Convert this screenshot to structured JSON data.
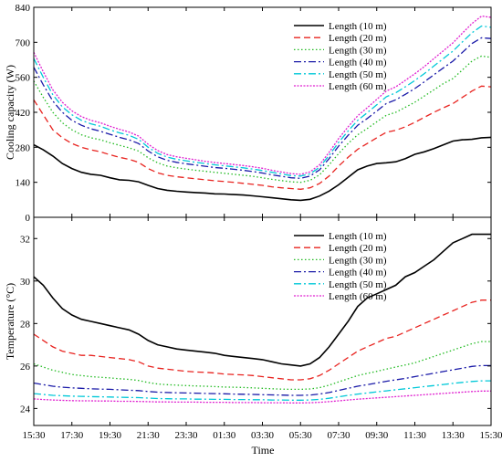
{
  "figure": {
    "x_axis_label": "Time",
    "x_ticks": [
      "15:30",
      "17:30",
      "19:30",
      "21:30",
      "23:30",
      "01:30",
      "03:30",
      "05:30",
      "07:30",
      "09:30",
      "11:30",
      "13:30",
      "15:30"
    ]
  },
  "chart_data": [
    {
      "type": "line",
      "ylabel": "Cooling capacity (W)",
      "xlabel": "",
      "ylim": [
        0,
        840
      ],
      "yticks": [
        0,
        140,
        280,
        420,
        560,
        700,
        840
      ],
      "legend_position": "top-right",
      "x": [
        0,
        0.5,
        1,
        1.5,
        2,
        2.5,
        3,
        3.5,
        4,
        4.5,
        5,
        5.5,
        6,
        6.5,
        7,
        7.5,
        8,
        8.5,
        9,
        9.5,
        10,
        10.5,
        11,
        11.5,
        12,
        12.5,
        13,
        13.5,
        14,
        14.5,
        15,
        15.5,
        16,
        16.5,
        17,
        17.5,
        18,
        18.5,
        19,
        19.5,
        20,
        20.5,
        21,
        21.5,
        22,
        22.5,
        23,
        23.5,
        24
      ],
      "series": [
        {
          "name": "Length (10 m)",
          "color": "#000000",
          "dash": "solid",
          "values": [
            290,
            270,
            245,
            215,
            195,
            180,
            172,
            168,
            158,
            150,
            148,
            142,
            128,
            115,
            108,
            104,
            101,
            99,
            97,
            94,
            93,
            91,
            89,
            86,
            82,
            78,
            74,
            70,
            68,
            72,
            85,
            105,
            130,
            160,
            190,
            205,
            215,
            218,
            222,
            235,
            252,
            262,
            275,
            290,
            305,
            310,
            312,
            318,
            320
          ]
        },
        {
          "name": "Length (20 m)",
          "color": "#e8231f",
          "dash": "dashed",
          "values": [
            470,
            410,
            350,
            318,
            295,
            280,
            270,
            262,
            250,
            240,
            232,
            220,
            195,
            178,
            168,
            162,
            158,
            154,
            150,
            146,
            143,
            140,
            136,
            132,
            128,
            122,
            118,
            115,
            112,
            118,
            135,
            165,
            205,
            240,
            272,
            295,
            318,
            340,
            348,
            362,
            380,
            400,
            420,
            438,
            455,
            480,
            505,
            525,
            522
          ]
        },
        {
          "name": "Length (30 m)",
          "color": "#22bb22",
          "dash": "dotted",
          "values": [
            545,
            480,
            420,
            378,
            350,
            330,
            318,
            310,
            298,
            288,
            278,
            265,
            238,
            218,
            205,
            198,
            193,
            188,
            184,
            180,
            176,
            172,
            168,
            164,
            158,
            152,
            147,
            142,
            140,
            148,
            170,
            210,
            255,
            295,
            330,
            355,
            382,
            408,
            420,
            440,
            460,
            485,
            510,
            535,
            555,
            590,
            625,
            645,
            640
          ]
        },
        {
          "name": "Length (40 m)",
          "color": "#1a1aa8",
          "dash": "dashdot",
          "values": [
            600,
            530,
            465,
            420,
            388,
            368,
            354,
            344,
            332,
            320,
            310,
            295,
            265,
            242,
            228,
            220,
            214,
            209,
            204,
            199,
            196,
            192,
            188,
            183,
            177,
            170,
            164,
            158,
            156,
            165,
            190,
            235,
            285,
            328,
            368,
            395,
            425,
            455,
            470,
            492,
            515,
            542,
            570,
            598,
            625,
            660,
            695,
            718,
            715
          ]
        },
        {
          "name": "Length (50 m)",
          "color": "#00c8d8",
          "dash": "dashdot",
          "values": [
            635,
            560,
            490,
            442,
            410,
            388,
            374,
            364,
            350,
            338,
            328,
            312,
            280,
            256,
            241,
            232,
            226,
            220,
            215,
            210,
            206,
            202,
            198,
            193,
            187,
            180,
            173,
            167,
            165,
            174,
            200,
            248,
            300,
            345,
            388,
            418,
            450,
            482,
            498,
            522,
            547,
            575,
            605,
            635,
            665,
            702,
            738,
            765,
            760
          ]
        },
        {
          "name": "Length (60 m)",
          "color": "#e020d0",
          "dash": "densedot",
          "values": [
            660,
            582,
            510,
            460,
            426,
            403,
            388,
            378,
            364,
            352,
            341,
            325,
            292,
            267,
            251,
            242,
            236,
            230,
            224,
            219,
            215,
            211,
            207,
            202,
            196,
            188,
            181,
            175,
            172,
            182,
            210,
            260,
            315,
            362,
            406,
            438,
            472,
            505,
            522,
            548,
            574,
            603,
            635,
            666,
            698,
            737,
            775,
            805,
            800
          ]
        }
      ]
    },
    {
      "type": "line",
      "ylabel": "Temperature (°C)",
      "xlabel": "Time",
      "ylim": [
        23.2,
        33.0
      ],
      "yticks": [
        24,
        26,
        28,
        30,
        32
      ],
      "legend_position": "top-right",
      "x": [
        0,
        0.5,
        1,
        1.5,
        2,
        2.5,
        3,
        3.5,
        4,
        4.5,
        5,
        5.5,
        6,
        6.5,
        7,
        7.5,
        8,
        8.5,
        9,
        9.5,
        10,
        10.5,
        11,
        11.5,
        12,
        12.5,
        13,
        13.5,
        14,
        14.5,
        15,
        15.5,
        16,
        16.5,
        17,
        17.5,
        18,
        18.5,
        19,
        19.5,
        20,
        20.5,
        21,
        21.5,
        22,
        22.5,
        23,
        23.5,
        24
      ],
      "series": [
        {
          "name": "Length (10 m)",
          "color": "#000000",
          "dash": "solid",
          "values": [
            30.2,
            29.8,
            29.2,
            28.7,
            28.4,
            28.2,
            28.1,
            28.0,
            27.9,
            27.8,
            27.7,
            27.5,
            27.2,
            27.0,
            26.9,
            26.8,
            26.75,
            26.7,
            26.65,
            26.6,
            26.5,
            26.45,
            26.4,
            26.35,
            26.3,
            26.2,
            26.1,
            26.05,
            26.0,
            26.1,
            26.4,
            26.9,
            27.5,
            28.1,
            28.8,
            29.2,
            29.4,
            29.6,
            29.8,
            30.2,
            30.4,
            30.7,
            31.0,
            31.4,
            31.8,
            32.0,
            32.2,
            32.2,
            32.2
          ]
        },
        {
          "name": "Length (20 m)",
          "color": "#e8231f",
          "dash": "dashed",
          "values": [
            27.5,
            27.2,
            26.9,
            26.7,
            26.6,
            26.5,
            26.5,
            26.45,
            26.4,
            26.35,
            26.3,
            26.2,
            26.0,
            25.9,
            25.85,
            25.8,
            25.75,
            25.72,
            25.7,
            25.67,
            25.62,
            25.6,
            25.58,
            25.55,
            25.5,
            25.45,
            25.4,
            25.35,
            25.35,
            25.4,
            25.55,
            25.8,
            26.1,
            26.4,
            26.7,
            26.9,
            27.1,
            27.3,
            27.4,
            27.6,
            27.8,
            28.0,
            28.2,
            28.4,
            28.6,
            28.8,
            29.0,
            29.1,
            29.1
          ]
        },
        {
          "name": "Length (30 m)",
          "color": "#22bb22",
          "dash": "dotted",
          "values": [
            26.1,
            25.95,
            25.8,
            25.7,
            25.6,
            25.55,
            25.5,
            25.47,
            25.44,
            25.4,
            25.37,
            25.32,
            25.22,
            25.15,
            25.12,
            25.1,
            25.08,
            25.06,
            25.05,
            25.03,
            25.01,
            25.0,
            24.99,
            24.97,
            24.95,
            24.93,
            24.91,
            24.9,
            24.9,
            24.92,
            24.98,
            25.1,
            25.25,
            25.4,
            25.55,
            25.65,
            25.75,
            25.85,
            25.95,
            26.05,
            26.15,
            26.3,
            26.45,
            26.6,
            26.75,
            26.9,
            27.05,
            27.15,
            27.15
          ]
        },
        {
          "name": "Length (40 m)",
          "color": "#1a1aa8",
          "dash": "dashdot",
          "values": [
            25.2,
            25.12,
            25.05,
            25.0,
            24.97,
            24.95,
            24.93,
            24.91,
            24.9,
            24.88,
            24.86,
            24.84,
            24.8,
            24.77,
            24.75,
            24.74,
            24.73,
            24.72,
            24.71,
            24.7,
            24.69,
            24.68,
            24.67,
            24.66,
            24.65,
            24.64,
            24.63,
            24.62,
            24.62,
            24.63,
            24.68,
            24.75,
            24.85,
            24.95,
            25.05,
            25.12,
            25.2,
            25.28,
            25.35,
            25.42,
            25.5,
            25.58,
            25.66,
            25.74,
            25.82,
            25.9,
            25.98,
            26.02,
            26.02
          ]
        },
        {
          "name": "Length (50 m)",
          "color": "#00c8d8",
          "dash": "dashdot",
          "values": [
            24.7,
            24.66,
            24.62,
            24.6,
            24.58,
            24.57,
            24.56,
            24.55,
            24.54,
            24.53,
            24.52,
            24.51,
            24.49,
            24.47,
            24.46,
            24.45,
            24.45,
            24.44,
            24.44,
            24.43,
            24.43,
            24.42,
            24.42,
            24.41,
            24.41,
            24.4,
            24.4,
            24.39,
            24.39,
            24.4,
            24.43,
            24.48,
            24.55,
            24.62,
            24.68,
            24.73,
            24.78,
            24.83,
            24.88,
            24.93,
            24.98,
            25.03,
            25.08,
            25.13,
            25.18,
            25.23,
            25.27,
            25.3,
            25.3
          ]
        },
        {
          "name": "Length (60 m)",
          "color": "#e020d0",
          "dash": "densedot",
          "values": [
            24.45,
            24.42,
            24.4,
            24.38,
            24.37,
            24.36,
            24.36,
            24.35,
            24.35,
            24.34,
            24.34,
            24.33,
            24.32,
            24.31,
            24.31,
            24.3,
            24.3,
            24.3,
            24.29,
            24.29,
            24.29,
            24.28,
            24.28,
            24.28,
            24.27,
            24.27,
            24.27,
            24.26,
            24.26,
            24.27,
            24.29,
            24.32,
            24.36,
            24.4,
            24.44,
            24.47,
            24.5,
            24.53,
            24.56,
            24.59,
            24.62,
            24.65,
            24.68,
            24.71,
            24.74,
            24.77,
            24.8,
            24.82,
            24.82
          ]
        }
      ]
    }
  ]
}
